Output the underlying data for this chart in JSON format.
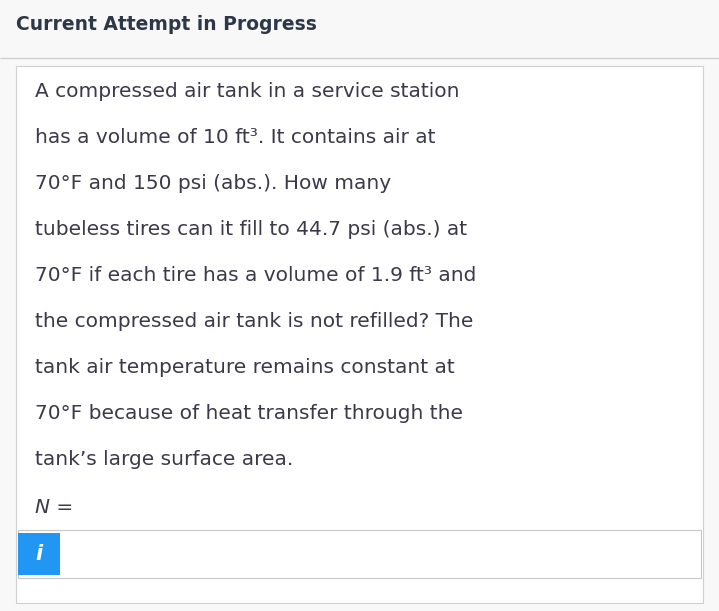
{
  "title": "Current Attempt in Progress",
  "title_fontsize": 13.5,
  "title_fontweight": "bold",
  "title_color": "#2d3748",
  "body_lines": [
    "A compressed air tank in a service station",
    "has a volume of 10 ft³. It contains air at",
    "70°F and 150 psi (abs.). How many",
    "tubeless tires can it fill to 44.7 psi (abs.) at",
    "70°F if each tire has a volume of 1.9 ft³ and",
    "the compressed air tank is not refilled? The",
    "tank air temperature remains constant at",
    "70°F because of heat transfer through the",
    "tank’s large surface area."
  ],
  "n_equals_line": "N =",
  "body_fontsize": 14.5,
  "body_color": "#3a3a4a",
  "background_color": "#f8f8f8",
  "separator_color": "#d0d0d0",
  "icon_box_color": "#2196f3",
  "icon_text": "i",
  "icon_text_color": "#ffffff",
  "input_box_border_color": "#c8c8c8",
  "input_box_bg": "#ffffff",
  "title_area_bg": "#f8f8f8",
  "card_bg": "#ffffff",
  "card_border_color": "#d0d0d0"
}
